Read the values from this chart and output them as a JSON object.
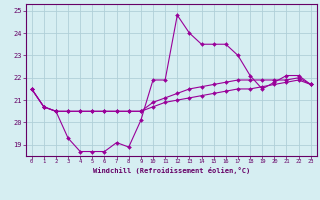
{
  "xlabel": "Windchill (Refroidissement éolien,°C)",
  "background_color": "#d6eef2",
  "grid_color": "#b0d0d8",
  "line_color": "#990099",
  "hours": [
    0,
    1,
    2,
    3,
    4,
    5,
    6,
    7,
    8,
    9,
    10,
    11,
    12,
    13,
    14,
    15,
    16,
    17,
    18,
    19,
    20,
    21,
    22,
    23
  ],
  "temp": [
    21.5,
    20.7,
    20.5,
    19.3,
    18.7,
    18.7,
    18.7,
    19.1,
    18.9,
    20.1,
    21.9,
    21.9,
    24.8,
    24.0,
    23.5,
    23.5,
    23.5,
    23.0,
    22.1,
    21.5,
    21.8,
    22.1,
    22.1,
    21.7
  ],
  "line2": [
    21.5,
    20.7,
    20.5,
    20.5,
    20.5,
    20.5,
    20.5,
    20.5,
    20.5,
    20.5,
    20.9,
    21.1,
    21.3,
    21.5,
    21.6,
    21.7,
    21.8,
    21.9,
    21.9,
    21.9,
    21.9,
    21.9,
    22.0,
    21.7
  ],
  "line3": [
    21.5,
    20.7,
    20.5,
    20.5,
    20.5,
    20.5,
    20.5,
    20.5,
    20.5,
    20.5,
    20.7,
    20.9,
    21.0,
    21.1,
    21.2,
    21.3,
    21.4,
    21.5,
    21.5,
    21.6,
    21.7,
    21.8,
    21.9,
    21.7
  ],
  "ylim": [
    18.5,
    25.3
  ],
  "yticks": [
    19,
    20,
    21,
    22,
    23,
    24,
    25
  ],
  "xlim": [
    -0.5,
    23.5
  ],
  "xticks": [
    0,
    1,
    2,
    3,
    4,
    5,
    6,
    7,
    8,
    9,
    10,
    11,
    12,
    13,
    14,
    15,
    16,
    17,
    18,
    19,
    20,
    21,
    22,
    23
  ],
  "spine_color": "#660066",
  "tick_color": "#660066",
  "label_color": "#660066"
}
